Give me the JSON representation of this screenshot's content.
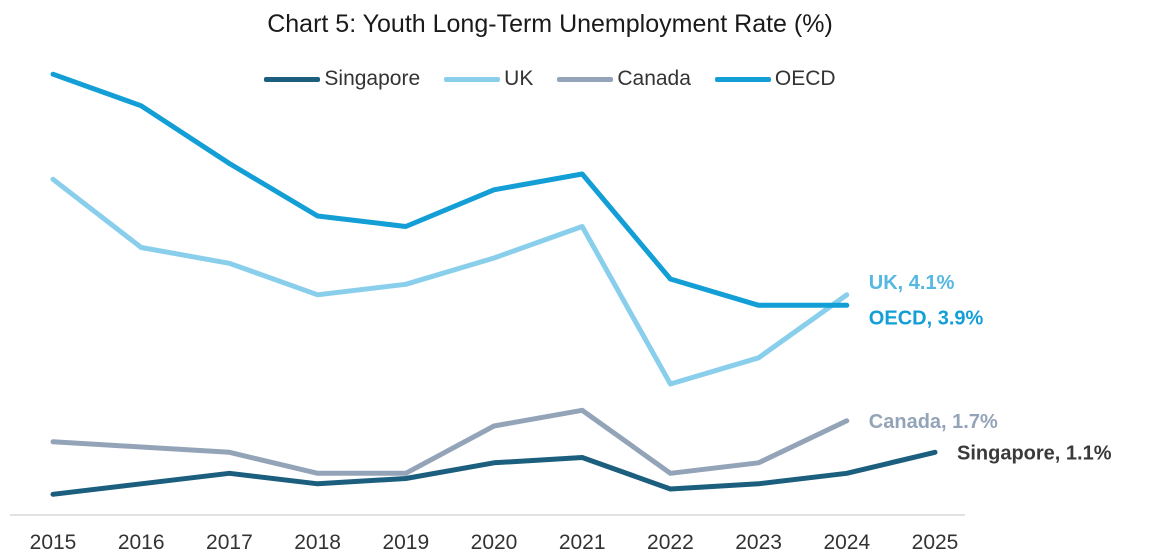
{
  "chart_data": {
    "type": "line",
    "title": "Chart 5: Youth Long-Term Unemployment Rate (%)",
    "xlabel": "",
    "ylabel": "",
    "x": [
      "2015",
      "2016",
      "2017",
      "2018",
      "2019",
      "2020",
      "2021",
      "2022",
      "2023",
      "2024",
      "2025"
    ],
    "ylim": [
      0,
      8
    ],
    "grid": false,
    "legend_position": "top-center",
    "series": [
      {
        "name": "Singapore",
        "color": "#1b5e7e",
        "values": [
          0.3,
          0.5,
          0.7,
          0.5,
          0.6,
          0.9,
          1.0,
          0.4,
          0.5,
          0.7,
          1.1
        ],
        "end_label": "Singapore, 1.1%",
        "end_label_color": "#3a3a3a"
      },
      {
        "name": "UK",
        "color": "#89cfec",
        "values": [
          6.3,
          5.0,
          4.7,
          4.1,
          4.3,
          4.8,
          5.4,
          2.4,
          2.9,
          4.1,
          null
        ],
        "end_label": "UK, 4.1%",
        "end_label_color": "#56b8e2"
      },
      {
        "name": "Canada",
        "color": "#94a4b8",
        "values": [
          1.3,
          1.2,
          1.1,
          0.7,
          0.7,
          1.6,
          1.9,
          0.7,
          0.9,
          1.7,
          null
        ],
        "end_label": "Canada, 1.7%",
        "end_label_color": "#94a4b8"
      },
      {
        "name": "OECD",
        "color": "#139fd6",
        "values": [
          8.3,
          7.7,
          6.6,
          5.6,
          5.4,
          6.1,
          6.4,
          4.4,
          3.9,
          3.9,
          null
        ],
        "end_label": "OECD, 3.9%",
        "end_label_color": "#139fd6"
      }
    ]
  }
}
